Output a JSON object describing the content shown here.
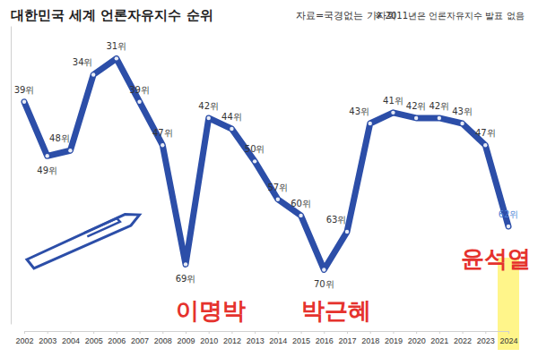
{
  "chart_data": {
    "type": "line",
    "title": "대한민국 세계 언론자유지수 순위",
    "source": "자료=국경없는 기자회",
    "note": "※ 2011년은 언론자유지수 발표 없음",
    "categories": [
      "2002",
      "2003",
      "2004",
      "2005",
      "2006",
      "2007",
      "2008",
      "2009",
      "2010",
      "2012",
      "2013",
      "2014",
      "2015",
      "2016",
      "2017",
      "2018",
      "2019",
      "2020",
      "2021",
      "2022",
      "2023",
      "2024"
    ],
    "values": [
      39,
      49,
      48,
      34,
      31,
      39,
      47,
      69,
      42,
      44,
      50,
      57,
      60,
      70,
      63,
      43,
      41,
      42,
      42,
      43,
      47,
      62
    ],
    "value_labels": [
      "39위",
      "49위",
      "48위",
      "34위",
      "31위",
      "39위",
      "47위",
      "69위",
      "42위",
      "44위",
      "50위",
      "57위",
      "60위",
      "70위",
      "63위",
      "43위",
      "41위",
      "42위",
      "42위",
      "43위",
      "47위",
      "62위"
    ],
    "color": "#2c4ea8",
    "marker": "circle",
    "ylim": [
      80,
      25
    ],
    "yticks": [],
    "grid": false,
    "data_labels": true,
    "tick_labels": "x",
    "annotations": [
      "이명박",
      "박근혜",
      "윤석열"
    ]
  }
}
